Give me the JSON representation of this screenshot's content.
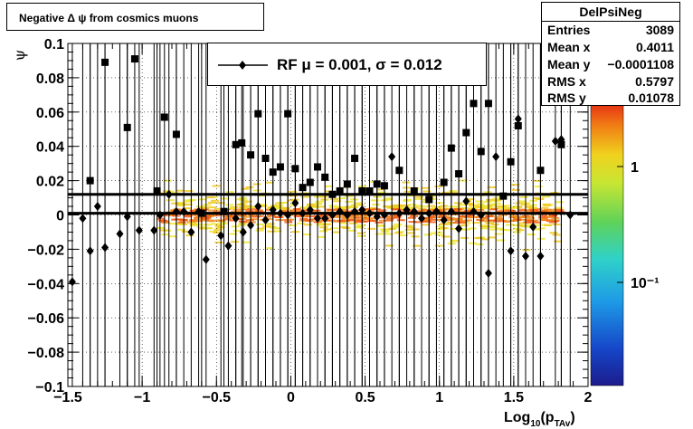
{
  "title": "Negative Δ ψ from cosmics muons",
  "stats": {
    "name": "DelPsiNeg",
    "rows": [
      {
        "label": "Entries",
        "value": "3089"
      },
      {
        "label": "Mean x",
        "value": "0.4011"
      },
      {
        "label": "Mean y",
        "value": "−0.0001108"
      },
      {
        "label": "RMS x",
        "value": "0.5797"
      },
      {
        "label": "RMS y",
        "value": "0.01078"
      }
    ]
  },
  "legend": {
    "text": "RF μ =  0.001, σ =   0.012"
  },
  "colorbar": {
    "ticks": [
      {
        "value": 1,
        "label": "1"
      },
      {
        "value": 0.1,
        "label": "10⁻¹"
      }
    ]
  },
  "colors": {
    "axis": "#000000",
    "marker": "#000000"
  },
  "chart_data": {
    "type": "scatter",
    "title": "Negative Δ ψ from cosmics muons",
    "xlabel": "Log10(pTAv)",
    "ylabel": "ψ",
    "xlim": [
      -1.5,
      2
    ],
    "ylim": [
      -0.1,
      0.1
    ],
    "xticks": [
      {
        "v": -1.5,
        "label": "−1.5"
      },
      {
        "v": -1,
        "label": "−1"
      },
      {
        "v": -0.5,
        "label": "−0.5"
      },
      {
        "v": 0,
        "label": "0"
      },
      {
        "v": 0.5,
        "label": "0.5"
      },
      {
        "v": 1,
        "label": "1"
      },
      {
        "v": 1.5,
        "label": "1.5"
      },
      {
        "v": 2,
        "label": "2"
      }
    ],
    "yticks": [
      {
        "v": -0.1,
        "label": "−0.1"
      },
      {
        "v": -0.08,
        "label": "−0.08"
      },
      {
        "v": -0.06,
        "label": "−0.06"
      },
      {
        "v": -0.04,
        "label": "−0.04"
      },
      {
        "v": -0.02,
        "label": "−0.02"
      },
      {
        "v": 0,
        "label": "0"
      },
      {
        "v": 0.02,
        "label": "0.02"
      },
      {
        "v": 0.04,
        "label": "0.04"
      },
      {
        "v": 0.06,
        "label": "0.06"
      },
      {
        "v": 0.08,
        "label": "0.08"
      },
      {
        "v": 0.1,
        "label": "0.1"
      }
    ],
    "hlines": [
      0.012,
      0.001
    ],
    "series": [
      {
        "marker": "square",
        "points": [
          [
            -1.35,
            0.02
          ],
          [
            -1.25,
            0.089
          ],
          [
            -1.1,
            0.051
          ],
          [
            -1.05,
            0.091
          ],
          [
            -0.9,
            0.014
          ],
          [
            -0.85,
            0.057
          ],
          [
            -0.77,
            0.047
          ],
          [
            -0.6,
            0.001
          ],
          [
            -0.45,
            0.002
          ],
          [
            -0.37,
            0.041
          ],
          [
            -0.33,
            0.042
          ],
          [
            -0.27,
            0.035
          ],
          [
            -0.22,
            0.059
          ],
          [
            -0.17,
            0.033
          ],
          [
            -0.12,
            0.025
          ],
          [
            -0.07,
            0.028
          ],
          [
            -0.02,
            0.059
          ],
          [
            0.03,
            0.027
          ],
          [
            0.08,
            0.016
          ],
          [
            0.13,
            0.019
          ],
          [
            0.18,
            0.028
          ],
          [
            0.23,
            0.022
          ],
          [
            0.28,
            0.012
          ],
          [
            0.33,
            0.014
          ],
          [
            0.38,
            0.018
          ],
          [
            0.43,
            0.033
          ],
          [
            0.48,
            0.014
          ],
          [
            0.53,
            0.014
          ],
          [
            0.58,
            0.018
          ],
          [
            0.63,
            0.017
          ],
          [
            0.73,
            0.026
          ],
          [
            0.83,
            0.014
          ],
          [
            0.93,
            0.009
          ],
          [
            1.03,
            0.019
          ],
          [
            1.08,
            0.039
          ],
          [
            1.13,
            0.024
          ],
          [
            1.18,
            0.048
          ],
          [
            1.23,
            0.065
          ],
          [
            1.28,
            0.037
          ],
          [
            1.33,
            0.065
          ],
          [
            1.43,
            0.011
          ],
          [
            1.48,
            0.031
          ],
          [
            1.53,
            0.052
          ],
          [
            1.68,
            0.026
          ],
          [
            1.82,
            0.041
          ]
        ]
      },
      {
        "marker": "diamond",
        "points": [
          [
            -1.47,
            -0.039
          ],
          [
            -1.4,
            -0.002
          ],
          [
            -1.35,
            -0.021
          ],
          [
            -1.3,
            0.005
          ],
          [
            -1.25,
            -0.019
          ],
          [
            -1.15,
            -0.011
          ],
          [
            -1.1,
            -0.001
          ],
          [
            -1.02,
            -0.009
          ],
          [
            -0.92,
            -0.009
          ],
          [
            -0.88,
            0.0
          ],
          [
            -0.82,
            0.012
          ],
          [
            -0.77,
            0.002
          ],
          [
            -0.72,
            0.002
          ],
          [
            -0.67,
            -0.01
          ],
          [
            -0.62,
            0.002
          ],
          [
            -0.57,
            -0.026
          ],
          [
            -0.47,
            -0.012
          ],
          [
            -0.42,
            -0.018
          ],
          [
            -0.37,
            -0.002
          ],
          [
            -0.32,
            -0.01
          ],
          [
            -0.27,
            -0.006
          ],
          [
            -0.22,
            0.005
          ],
          [
            -0.17,
            -0.003
          ],
          [
            -0.12,
            0.003
          ],
          [
            -0.07,
            0.001
          ],
          [
            -0.02,
            0.0
          ],
          [
            0.03,
            0.007
          ],
          [
            0.08,
            0.001
          ],
          [
            0.13,
            0.003
          ],
          [
            0.18,
            -0.002
          ],
          [
            0.23,
            -0.002
          ],
          [
            0.28,
            0.0
          ],
          [
            0.33,
            0.002
          ],
          [
            0.38,
            0.0
          ],
          [
            0.43,
            0.002
          ],
          [
            0.48,
            0.003
          ],
          [
            0.53,
            0.001
          ],
          [
            0.58,
            -0.001
          ],
          [
            0.63,
            0.0
          ],
          [
            0.68,
            0.034
          ],
          [
            0.73,
            0.001
          ],
          [
            0.78,
            0.003
          ],
          [
            0.83,
            0.002
          ],
          [
            0.88,
            -0.002
          ],
          [
            0.93,
            0.001
          ],
          [
            0.98,
            0.002
          ],
          [
            1.03,
            -0.003
          ],
          [
            1.08,
            0.002
          ],
          [
            1.13,
            -0.008
          ],
          [
            1.18,
            0.008
          ],
          [
            1.23,
            0.002
          ],
          [
            1.28,
            0.0
          ],
          [
            1.33,
            -0.034
          ],
          [
            1.38,
            0.034
          ],
          [
            1.48,
            -0.021
          ],
          [
            1.53,
            0.056
          ],
          [
            1.58,
            -0.024
          ],
          [
            1.63,
            -0.007
          ],
          [
            1.68,
            -0.024
          ],
          [
            1.78,
            0.043
          ],
          [
            1.82,
            0.044
          ],
          [
            1.88,
            0.0
          ]
        ]
      }
    ]
  }
}
